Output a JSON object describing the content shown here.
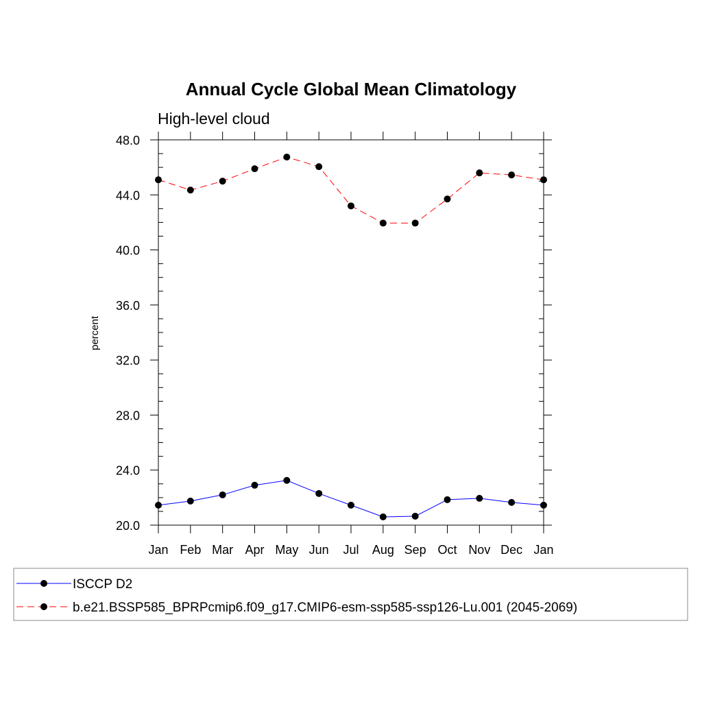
{
  "chart_data": {
    "type": "line",
    "title": "Annual Cycle Global Mean Climatology",
    "subtitle": "High-level cloud",
    "xlabel": "",
    "ylabel": "percent",
    "categories": [
      "Jan",
      "Feb",
      "Mar",
      "Apr",
      "May",
      "Jun",
      "Jul",
      "Aug",
      "Sep",
      "Oct",
      "Nov",
      "Dec",
      "Jan"
    ],
    "ylim": [
      20.0,
      48.0
    ],
    "yticks": [
      "20.0",
      "24.0",
      "28.0",
      "32.0",
      "36.0",
      "40.0",
      "44.0",
      "48.0"
    ],
    "grid": false,
    "legend_position": "bottom",
    "series": [
      {
        "name": "ISCCP D2",
        "color": "#0000ff",
        "dash": "solid",
        "marker": "filled-circle",
        "values": [
          21.45,
          21.75,
          22.2,
          22.9,
          23.25,
          22.3,
          21.45,
          20.6,
          20.65,
          21.85,
          21.95,
          21.65,
          21.45
        ]
      },
      {
        "name": "b.e21.BSSP585_BPRPcmip6.f09_g17.CMIP6-esm-ssp585-ssp126-Lu.001 (2045-2069)",
        "color": "#ff0000",
        "dash": "dashed",
        "marker": "filled-circle",
        "values": [
          45.1,
          44.35,
          45.0,
          45.9,
          46.75,
          46.05,
          43.2,
          41.95,
          41.95,
          43.7,
          45.6,
          45.45,
          45.1
        ]
      }
    ]
  }
}
